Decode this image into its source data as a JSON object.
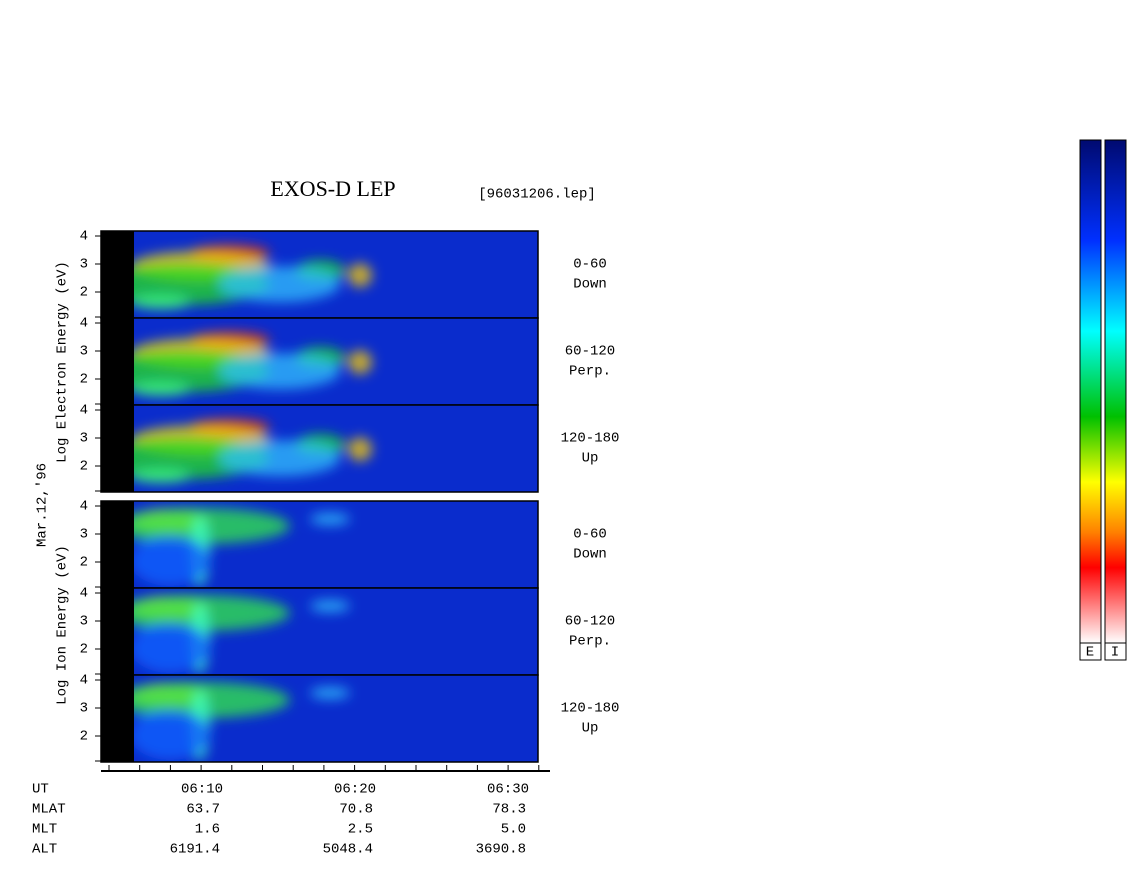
{
  "title": "EXOS-D LEP",
  "file": "[96031206.lep]",
  "date": "Mar.12,'96",
  "electron": {
    "ylabel": "Log  Electron  Energy (eV)",
    "panels": [
      {
        "angle": "0-60",
        "dir": "Down"
      },
      {
        "angle": "60-120",
        "dir": "Perp."
      },
      {
        "angle": "120-180",
        "dir": "Up"
      }
    ],
    "yticks": [
      "4",
      "3",
      "2"
    ]
  },
  "ion": {
    "ylabel": "Log  Ion  Energy (eV)",
    "panels": [
      {
        "angle": "0-60",
        "dir": "Down"
      },
      {
        "angle": "60-120",
        "dir": "Perp."
      },
      {
        "angle": "120-180",
        "dir": "Up"
      }
    ],
    "yticks": [
      "4",
      "3",
      "2"
    ]
  },
  "table": {
    "rows": [
      {
        "label": "UT",
        "values": [
          "06:10",
          "06:20",
          "06:30"
        ]
      },
      {
        "label": "MLAT",
        "values": [
          "63.7",
          "70.8",
          "78.3"
        ]
      },
      {
        "label": "MLT",
        "values": [
          "1.6",
          "2.5",
          "5.0"
        ]
      },
      {
        "label": "ALT",
        "values": [
          "6191.4",
          "5048.4",
          "3690.8"
        ]
      }
    ]
  },
  "colorbar": {
    "labels": [
      "E",
      "I"
    ]
  }
}
